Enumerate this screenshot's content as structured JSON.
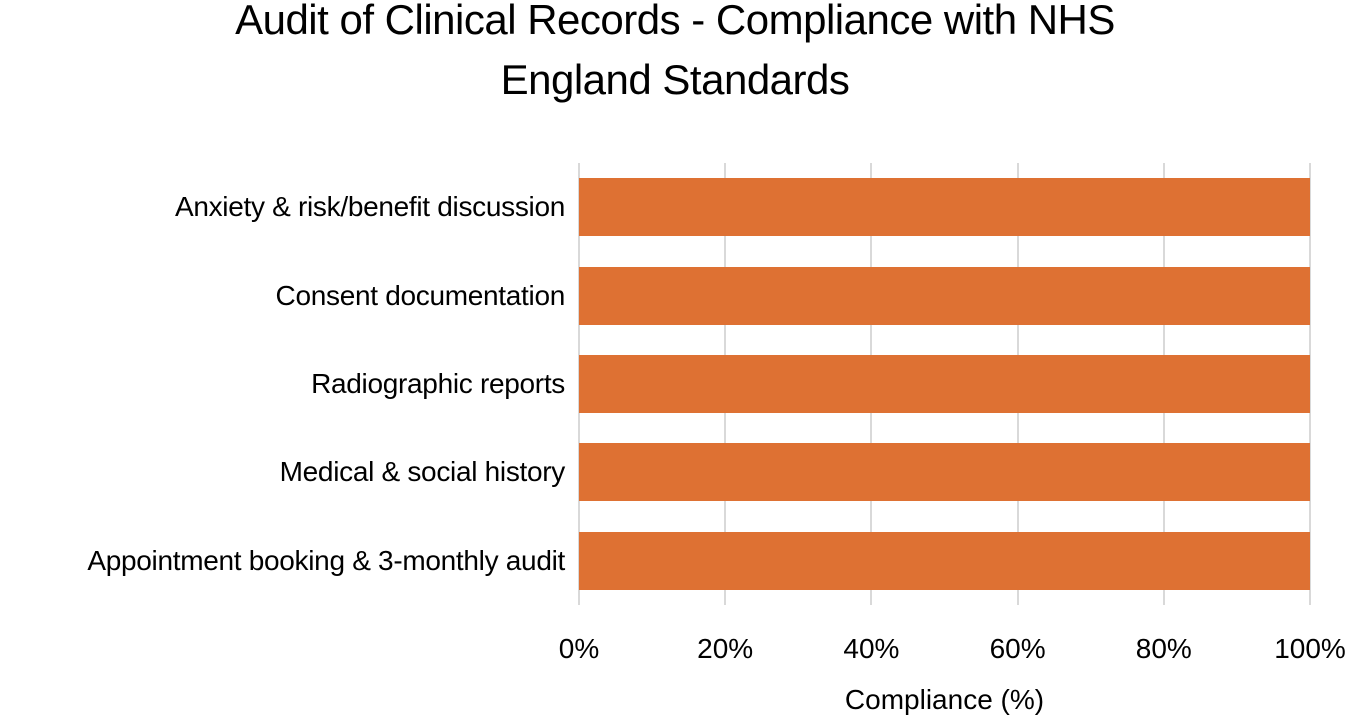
{
  "title": {
    "line1": "Audit of Clinical Records - Compliance with NHS",
    "line2": "England Standards"
  },
  "chart_data": {
    "type": "bar",
    "orientation": "horizontal",
    "title": "Audit of Clinical Records - Compliance with NHS England Standards",
    "categories": [
      "Anxiety & risk/benefit discussion",
      "Consent documentation",
      "Radiographic reports",
      "Medical & social history",
      "Appointment booking & 3-monthly audit"
    ],
    "values": [
      100,
      100,
      100,
      100,
      100
    ],
    "xlabel": "Compliance (%)",
    "ylabel": "",
    "xlim": [
      0,
      100
    ],
    "xticks": [
      {
        "value": 0,
        "label": "0%"
      },
      {
        "value": 20,
        "label": "20%"
      },
      {
        "value": 40,
        "label": "40%"
      },
      {
        "value": 60,
        "label": "60%"
      },
      {
        "value": 80,
        "label": "80%"
      },
      {
        "value": 100,
        "label": "100%"
      }
    ],
    "grid": "vertical",
    "legend": "none",
    "colors": {
      "bar": "#DE7133",
      "gridline": "#D9D9D9",
      "text": "#000000",
      "background": "#FFFFFF"
    }
  }
}
